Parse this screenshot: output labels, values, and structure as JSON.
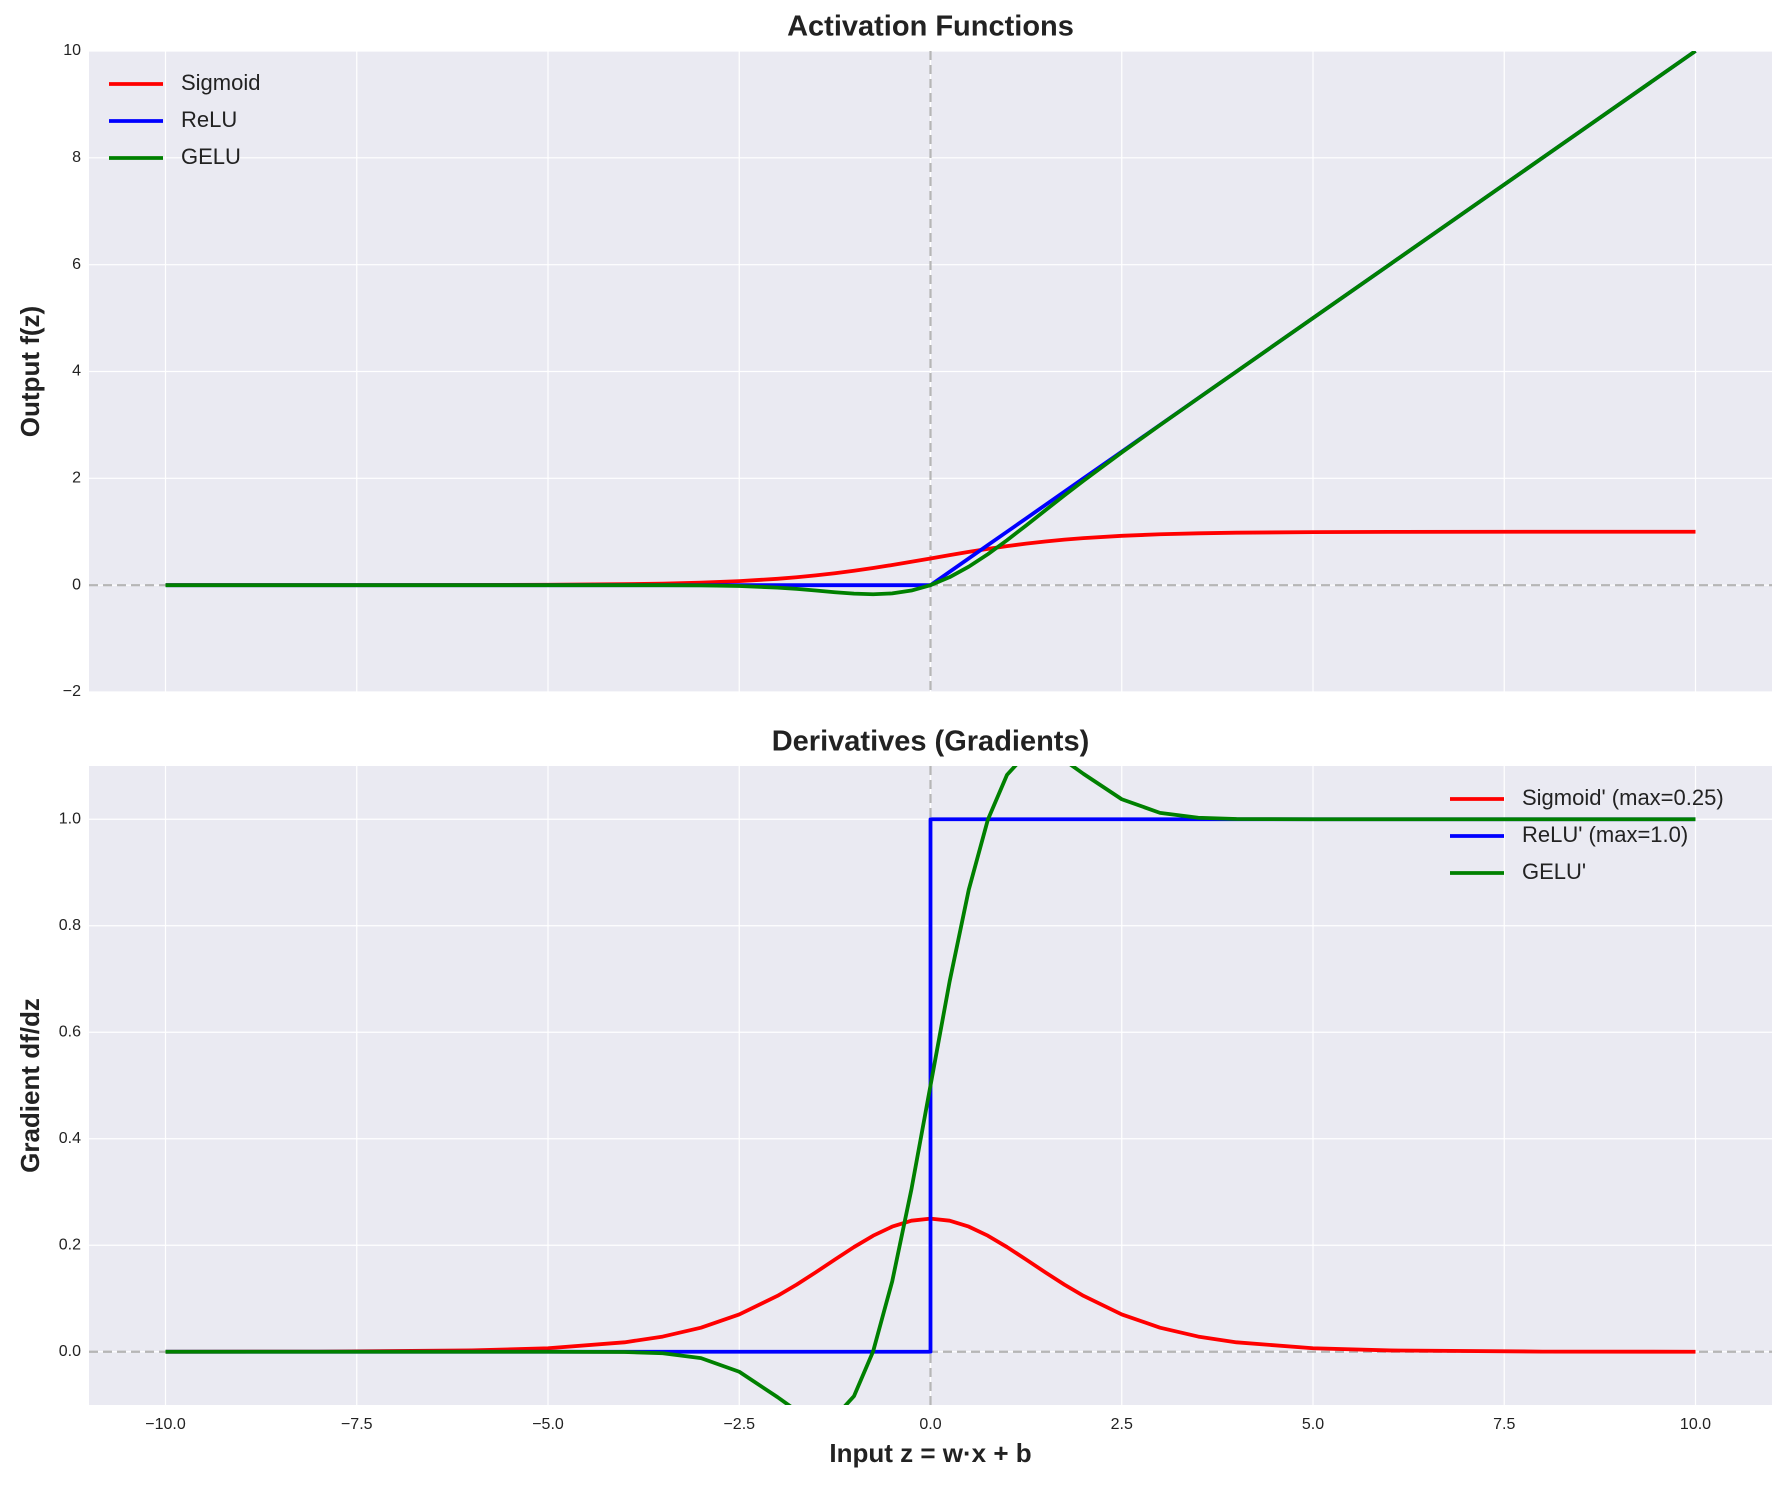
{
  "chart_data": [
    {
      "type": "line",
      "title": "Activation Functions",
      "ylabel": "Output f(z)",
      "x": [
        -10,
        -8,
        -6,
        -5,
        -4,
        -3.5,
        -3,
        -2.5,
        -2,
        -1.75,
        -1.5,
        -1.25,
        -1,
        -0.75,
        -0.5,
        -0.25,
        0,
        0.25,
        0.5,
        0.75,
        1,
        1.25,
        1.5,
        1.75,
        2,
        2.5,
        3,
        3.5,
        4,
        5,
        6,
        8,
        10
      ],
      "series": [
        {
          "name": "Sigmoid",
          "color": "#ff0000",
          "values": [
            5e-05,
            0.0003,
            0.0025,
            0.0067,
            0.018,
            0.0293,
            0.0474,
            0.0759,
            0.1192,
            0.148,
            0.1824,
            0.2227,
            0.2689,
            0.3208,
            0.3775,
            0.4378,
            0.5,
            0.5622,
            0.6225,
            0.6792,
            0.7311,
            0.7773,
            0.8176,
            0.852,
            0.8808,
            0.9241,
            0.9526,
            0.9707,
            0.982,
            0.9933,
            0.9975,
            0.9997,
            1.0
          ]
        },
        {
          "name": "ReLU",
          "color": "#0000ff",
          "values": [
            0,
            0,
            0,
            0,
            0,
            0,
            0,
            0,
            0,
            0,
            0,
            0,
            0,
            0,
            0,
            0,
            0,
            0.25,
            0.5,
            0.75,
            1,
            1.25,
            1.5,
            1.75,
            2,
            2.5,
            3,
            3.5,
            4,
            5,
            6,
            8,
            10
          ]
        },
        {
          "name": "GELU",
          "color": "#008000",
          "values": [
            0,
            0,
            0,
            0,
            -0.0001,
            -0.0008,
            -0.004,
            -0.0155,
            -0.0455,
            -0.0701,
            -0.1002,
            -0.132,
            -0.1587,
            -0.17,
            -0.1543,
            -0.1003,
            0,
            0.1497,
            0.3457,
            0.58,
            0.8413,
            1.118,
            1.3998,
            1.6799,
            1.9545,
            2.4845,
            2.996,
            3.4992,
            3.9999,
            5,
            6,
            8,
            10
          ]
        }
      ],
      "xlim": [
        -11,
        11
      ],
      "sharex": true,
      "ylim": [
        -2,
        10
      ],
      "yticks": [
        {
          "value": -2,
          "label": "−2"
        },
        0,
        2,
        4,
        6,
        8,
        10
      ],
      "grid": true,
      "legend": "upper left",
      "reference_lines": {
        "x": 0,
        "y": 0
      }
    },
    {
      "type": "line",
      "title": "Derivatives (Gradients)",
      "xlabel": "Input z = w·x + b",
      "ylabel": "Gradient df/dz",
      "x": [
        -10,
        -8,
        -6,
        -5,
        -4,
        -3.5,
        -3,
        -2.5,
        -2,
        -1.75,
        -1.5,
        -1.25,
        -1,
        -0.75,
        -0.5,
        -0.25,
        0,
        0,
        0.25,
        0.5,
        0.75,
        1,
        1.25,
        1.5,
        1.75,
        2,
        2.5,
        3,
        3.5,
        4,
        5,
        6,
        8,
        10
      ],
      "series": [
        {
          "name": "Sigmoid' (max=0.25)",
          "color": "#ff0000",
          "values": [
            5e-05,
            0.0003,
            0.0025,
            0.0066,
            0.0177,
            0.0285,
            0.0452,
            0.0701,
            0.105,
            0.1261,
            0.1492,
            0.1731,
            0.1966,
            0.2179,
            0.235,
            0.2461,
            0.25,
            0.25,
            0.2461,
            0.235,
            0.2179,
            0.1966,
            0.1731,
            0.1492,
            0.1261,
            0.105,
            0.0701,
            0.0452,
            0.0285,
            0.0177,
            0.0066,
            0.0025,
            0.0003,
            5e-05
          ]
        },
        {
          "name": "ReLU' (max=1.0)",
          "color": "#0000ff",
          "values": [
            0,
            0,
            0,
            0,
            0,
            0,
            0,
            0,
            0,
            0,
            0,
            0,
            0,
            0,
            0,
            0,
            0,
            1,
            1,
            1,
            1,
            1,
            1,
            1,
            1,
            1,
            1,
            1,
            1,
            1,
            1,
            1,
            1,
            1
          ]
        },
        {
          "name": "GELU'",
          "color": "#008000",
          "values": [
            0,
            0,
            0,
            0,
            -0.0005,
            -0.0028,
            -0.012,
            -0.0376,
            -0.0852,
            -0.1109,
            -0.1275,
            -0.1227,
            -0.0833,
            0.0007,
            0.1325,
            0.3046,
            0.5,
            0.5,
            0.6954,
            0.8675,
            0.9993,
            1.0833,
            1.1227,
            1.1275,
            1.1109,
            1.0852,
            1.0376,
            1.012,
            1.0028,
            1.0005,
            1,
            1,
            1,
            1
          ]
        }
      ],
      "xlim": [
        -11,
        11
      ],
      "xticks": [
        {
          "value": -10,
          "label": "−10.0"
        },
        {
          "value": -7.5,
          "label": "−7.5"
        },
        {
          "value": -5,
          "label": "−5.0"
        },
        {
          "value": -2.5,
          "label": "−2.5"
        },
        {
          "value": 0,
          "label": "0.0"
        },
        2.5,
        {
          "value": 5,
          "label": "5.0"
        },
        7.5,
        {
          "value": 10,
          "label": "10.0"
        }
      ],
      "ylim": [
        -0.1,
        1.1
      ],
      "yticks": [
        {
          "value": 0,
          "label": "0.0"
        },
        0.2,
        0.4,
        0.6,
        0.8,
        {
          "value": 1,
          "label": "1.0"
        }
      ],
      "grid": true,
      "legend": "upper right",
      "reference_lines": {
        "x": 0,
        "y": 0
      }
    }
  ]
}
